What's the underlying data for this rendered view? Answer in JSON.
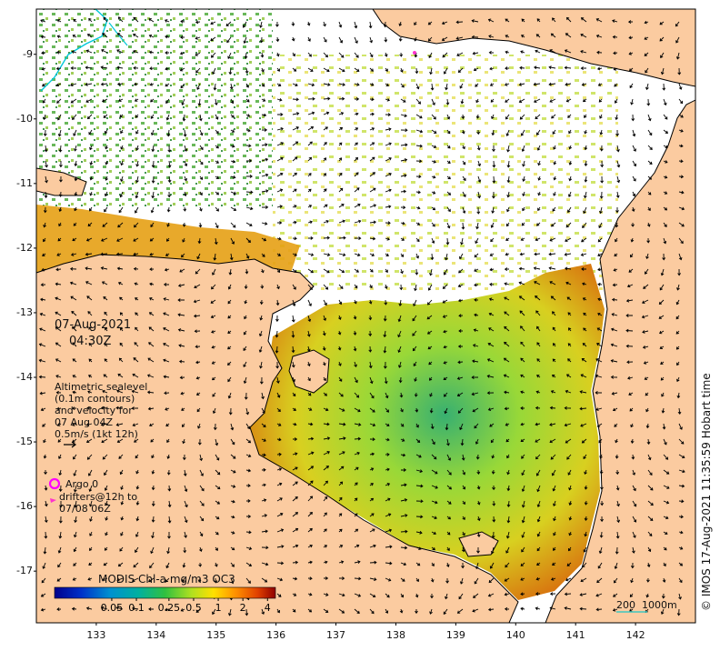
{
  "map": {
    "date": "07-Aug-2021",
    "time": "04:30Z",
    "velocity_legend": [
      "Altimetric sealevel",
      "(0.1m contours)",
      "and velocity for",
      "07 Aug 04Z",
      "0.5m/s (1kt 12h)"
    ],
    "argo_label": "Argo 0",
    "drifters_label": [
      "drifters@12h to",
      "07/08 06Z"
    ],
    "colorbar": {
      "title": "MODIS Chl-a mg/m3 OC3",
      "ticks": [
        "0.05",
        "0.1",
        "0.25",
        "0.5",
        "1",
        "2",
        "4"
      ],
      "tick_values": [
        0.05,
        0.1,
        0.25,
        0.5,
        1,
        2,
        4
      ],
      "range": [
        0.01,
        5
      ]
    },
    "scale_bar": {
      "label_distance": "200",
      "label_depth": "1000m"
    },
    "copyright": "© IMOS 17-Aug-2021 11:35:59 Hobart time",
    "lat_ticks": [
      "-9",
      "-10",
      "-11",
      "-12",
      "-13",
      "-14",
      "-15",
      "-16",
      "-17"
    ],
    "lon_ticks": [
      "133",
      "134",
      "135",
      "136",
      "137",
      "138",
      "139",
      "140",
      "141",
      "142"
    ],
    "lat_range": [
      -17.8,
      -8.3
    ],
    "lon_range": [
      132.0,
      143.0
    ],
    "colors": {
      "land": "#fbcba0",
      "ocean_nodata": "#ffffff",
      "argo_marker": "#ff00ff",
      "drifter": "#ff33cc",
      "coastline": "#000000",
      "river": "#00c8d8"
    }
  }
}
